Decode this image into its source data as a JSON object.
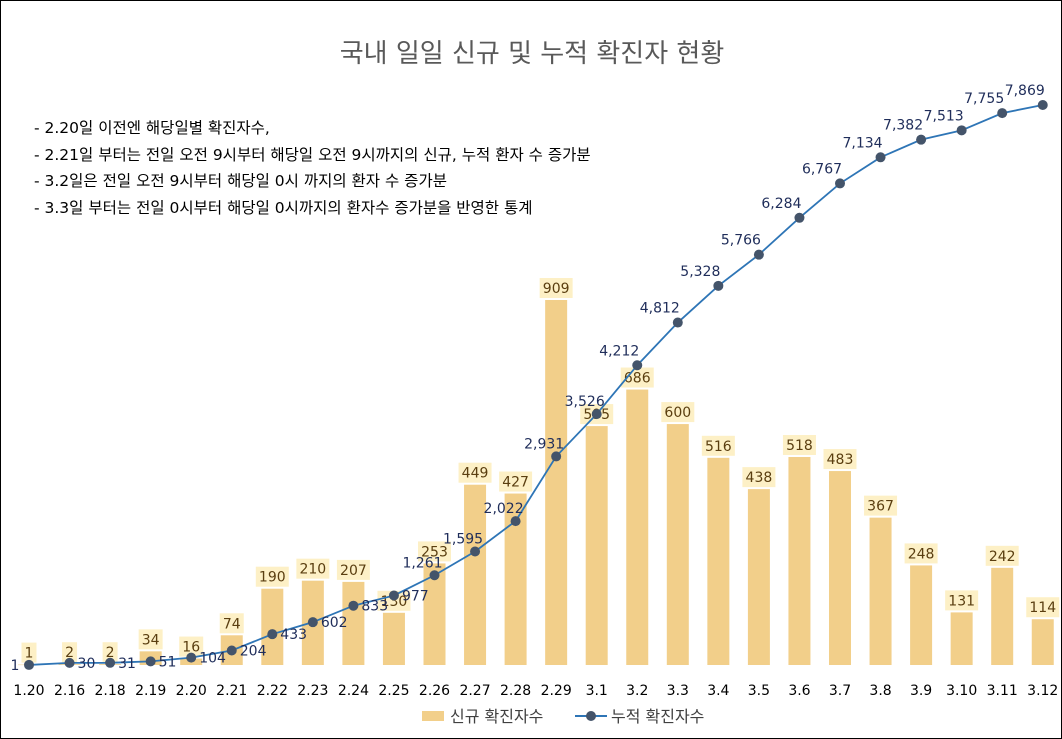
{
  "chart_data": {
    "type": "bar+line",
    "title": "국내 일일 신규 및 누적 확진자 현황",
    "notes": [
      "- 2.20일 이전엔 해당일별 확진자수,",
      "- 2.21일 부터는 전일 오전 9시부터 해당일 오전 9시까지의 신규, 누적 환자 수 증가분",
      "- 3.2일은 전일 오전 9시부터 해당일 0시 까지의 환자 수 증가분",
      "- 3.3일 부터는 전일 0시부터 해당일 0시까지의 환자수 증가분을 반영한 통계"
    ],
    "categories": [
      "1.20",
      "2.16",
      "2.18",
      "2.19",
      "2.20",
      "2.21",
      "2.22",
      "2.23",
      "2.24",
      "2.25",
      "2.26",
      "2.27",
      "2.28",
      "2.29",
      "3.1",
      "3.2",
      "3.3",
      "3.4",
      "3.5",
      "3.6",
      "3.7",
      "3.8",
      "3.9",
      "3.10",
      "3.11",
      "3.12"
    ],
    "series": [
      {
        "name": "신규 확진자수",
        "type": "bar",
        "values": [
          1,
          2,
          2,
          34,
          16,
          74,
          190,
          210,
          207,
          130,
          253,
          449,
          427,
          909,
          595,
          686,
          600,
          516,
          438,
          518,
          483,
          367,
          248,
          131,
          242,
          114
        ],
        "labels": [
          "1",
          "2",
          "2",
          "34",
          "16",
          "74",
          "190",
          "210",
          "207",
          "130",
          "253",
          "449",
          "427",
          "909",
          "595",
          "686",
          "600",
          "516",
          "438",
          "518",
          "483",
          "367",
          "248",
          "131",
          "242",
          "114"
        ]
      },
      {
        "name": "누적 확진자수",
        "type": "line",
        "values": [
          1,
          30,
          31,
          51,
          104,
          204,
          433,
          602,
          833,
          977,
          1261,
          1595,
          2022,
          2931,
          3526,
          4212,
          4812,
          5328,
          5766,
          6284,
          6767,
          7134,
          7382,
          7513,
          7755,
          7869
        ],
        "labels": [
          "1",
          "30",
          "31",
          "51",
          "104",
          "204",
          "433",
          "602",
          "833",
          "977",
          "1,261",
          "1,595",
          "2,022",
          "2,931",
          "3,526",
          "4,212",
          "4,812",
          "5,328",
          "5,766",
          "6,284",
          "6,767",
          "7,134",
          "7,382",
          "7,513",
          "7,755",
          "7,869"
        ]
      }
    ],
    "colors": {
      "bar": "#f2cf8a",
      "bar_label_bg": "#fdf0c6",
      "line": "#2e75b6",
      "marker": "#44546a"
    },
    "legend_position": "bottom",
    "grid": false
  }
}
